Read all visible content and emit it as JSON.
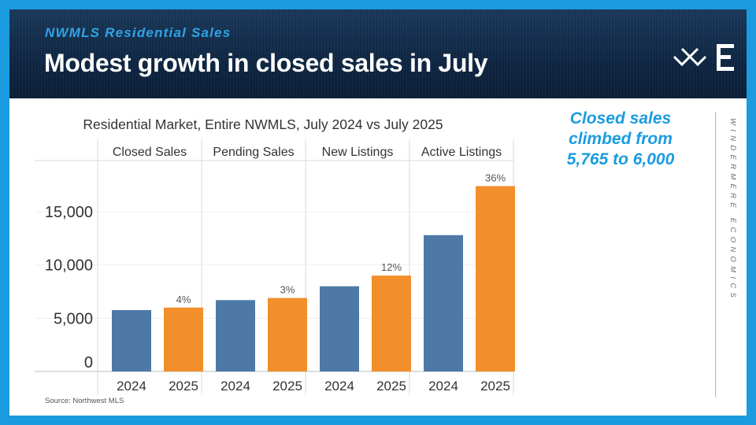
{
  "header": {
    "kicker": "NWMLS Residential Sales",
    "title": "Modest growth in closed sales in July"
  },
  "callout": {
    "line1": "Closed sales",
    "line2": "climbed from",
    "line3": "5,765 to 6,000"
  },
  "sidebar_text": "WINDERMERE ECONOMICS",
  "source": "Source: Northwest MLS",
  "colors": {
    "series_2024": "#4e79a7",
    "series_2025": "#f28e2b",
    "accent": "#1a9be0",
    "header_bg": "#0f2744"
  },
  "icons": [
    "windermere-logo-icon",
    "economics-e-icon"
  ],
  "chart_data": {
    "type": "bar",
    "title": "Residential Market, Entire NWMLS, July 2024 vs July 2025",
    "categories": [
      "Closed Sales",
      "Pending Sales",
      "New Listings",
      "Active Listings"
    ],
    "x": [
      "2024",
      "2025"
    ],
    "series": [
      {
        "name": "2024",
        "values": [
          5765,
          6700,
          8000,
          12800
        ]
      },
      {
        "name": "2025",
        "values": [
          6000,
          6900,
          9000,
          17400
        ]
      }
    ],
    "data_labels": [
      "4%",
      "3%",
      "12%",
      "36%"
    ],
    "yticks": [
      0,
      5000,
      10000,
      15000
    ],
    "ytick_labels": [
      "0",
      "5,000",
      "10,000",
      "15,000"
    ],
    "ylim": [
      0,
      19800
    ],
    "xlabel": "",
    "ylabel": "",
    "grid": true,
    "legend": "none"
  }
}
